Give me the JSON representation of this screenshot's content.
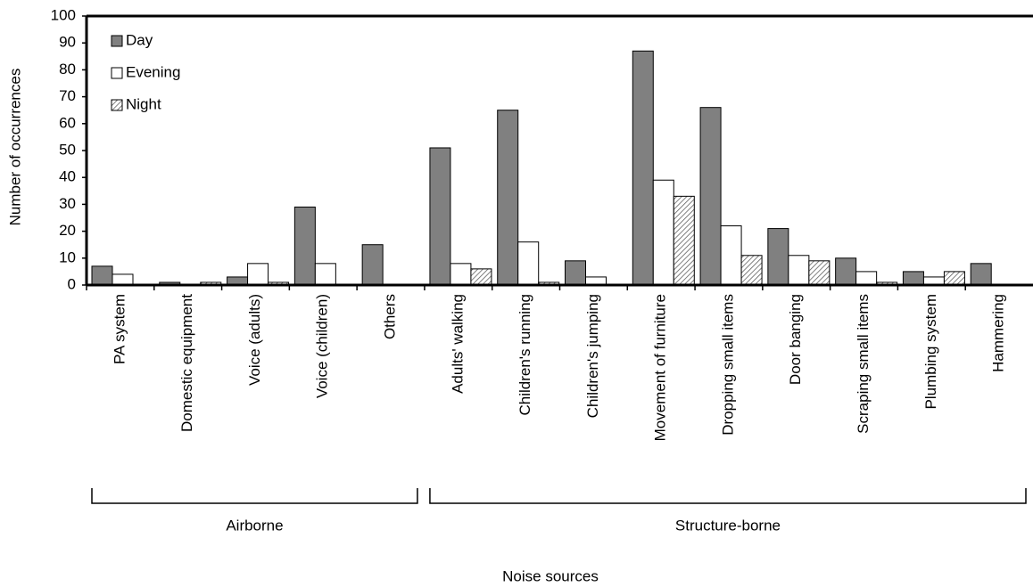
{
  "chart_data": {
    "type": "bar",
    "x_label": "Noise sources",
    "y_label": "Number of occurrences",
    "categories": [
      "PA system",
      "Domestic equipment",
      "Voice (adults)",
      "Voice (children)",
      "Others",
      "Adults' walking",
      "Children's running",
      "Children's jumping",
      "Movement of furniture",
      "Dropping small items",
      "Door banging",
      "Scraping small items",
      "Plumbing system",
      "Hammering"
    ],
    "series": [
      {
        "name": "Day",
        "color": "#808080",
        "hatch": false,
        "values": [
          7,
          1,
          3,
          29,
          15,
          51,
          65,
          9,
          87,
          66,
          21,
          10,
          5,
          8
        ]
      },
      {
        "name": "Evening",
        "color": "#ffffff",
        "hatch": false,
        "values": [
          4,
          0,
          8,
          8,
          0,
          8,
          16,
          3,
          39,
          22,
          11,
          5,
          3,
          0
        ]
      },
      {
        "name": "Night",
        "color": "#ffffff",
        "hatch": true,
        "values": [
          0,
          1,
          1,
          0,
          0,
          6,
          1,
          0,
          33,
          11,
          9,
          1,
          5,
          0
        ]
      }
    ],
    "groups": [
      {
        "label": "Airborne",
        "span": [
          0,
          4
        ]
      },
      {
        "label": "Structure-borne",
        "span": [
          5,
          13
        ]
      }
    ],
    "ylim": [
      0,
      100
    ],
    "yticks": [
      0,
      10,
      20,
      30,
      40,
      50,
      60,
      70,
      80,
      90,
      100
    ],
    "legend": "top-left"
  }
}
